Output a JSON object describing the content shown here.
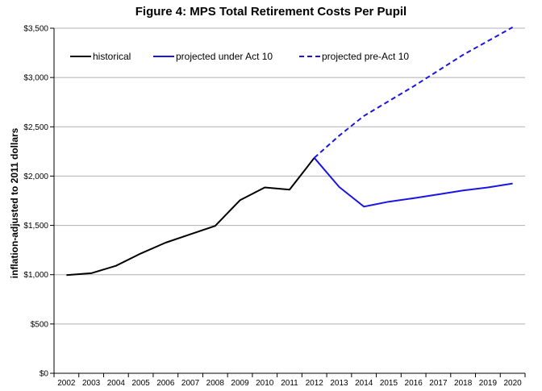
{
  "chart_data": {
    "type": "line",
    "title": "Figure 4:  MPS Total Retirement Costs Per Pupil",
    "xlabel": "",
    "ylabel": "inflation-adjusted to 2011 dollars",
    "categories": [
      "2002",
      "2003",
      "2004",
      "2005",
      "2006",
      "2007",
      "2008",
      "2009",
      "2010",
      "2011",
      "2012",
      "2013",
      "2014",
      "2015",
      "2016",
      "2017",
      "2018",
      "2019",
      "2020"
    ],
    "ylim": [
      0,
      3500
    ],
    "yticks": [
      0,
      500,
      1000,
      1500,
      2000,
      2500,
      3000,
      3500
    ],
    "ytick_labels": [
      "$0",
      "$500",
      "$1,000",
      "$1,500",
      "$2,000",
      "$2,500",
      "$3,000",
      "$3,500"
    ],
    "grid": "horizontal",
    "legend_position": "top",
    "series": [
      {
        "name": "historical",
        "color": "#000000",
        "dash": "solid",
        "values": [
          995,
          1015,
          1090,
          1215,
          1325,
          1410,
          1495,
          1755,
          1885,
          1862,
          2185,
          null,
          null,
          null,
          null,
          null,
          null,
          null,
          null
        ]
      },
      {
        "name": "projected under Act 10",
        "color": "#1a14e6",
        "dash": "solid",
        "values": [
          null,
          null,
          null,
          null,
          null,
          null,
          null,
          null,
          null,
          null,
          2185,
          1890,
          1690,
          1740,
          1775,
          1815,
          1855,
          1885,
          1925
        ]
      },
      {
        "name": "projected pre-Act 10",
        "color": "#1a14e6",
        "dash": "dashed",
        "values": [
          null,
          null,
          null,
          null,
          null,
          null,
          null,
          null,
          null,
          null,
          2185,
          2410,
          2610,
          2760,
          2910,
          3070,
          3230,
          3370,
          3510
        ]
      }
    ]
  }
}
